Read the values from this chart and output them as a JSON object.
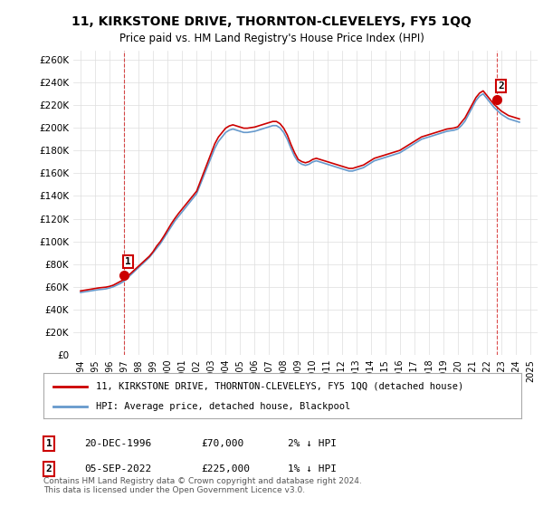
{
  "title": "11, KIRKSTONE DRIVE, THORNTON-CLEVELEYS, FY5 1QQ",
  "subtitle": "Price paid vs. HM Land Registry's House Price Index (HPI)",
  "ylabel_values": [
    "£0",
    "£20K",
    "£40K",
    "£60K",
    "£80K",
    "£100K",
    "£120K",
    "£140K",
    "£160K",
    "£180K",
    "£200K",
    "£220K",
    "£240K",
    "£260K"
  ],
  "yticks": [
    0,
    20000,
    40000,
    60000,
    80000,
    100000,
    120000,
    140000,
    160000,
    180000,
    200000,
    220000,
    240000,
    260000
  ],
  "xlim_start": 1993.5,
  "xlim_end": 2025.5,
  "ylim_min": 0,
  "ylim_max": 268000,
  "sale1_x": 1996.97,
  "sale1_y": 70000,
  "sale1_label": "1",
  "sale2_x": 2022.68,
  "sale2_y": 225000,
  "sale2_label": "2",
  "sale_color": "#cc0000",
  "hpi_color": "#6699cc",
  "property_line_color": "#cc0000",
  "grid_color": "#dddddd",
  "bg_color": "#ffffff",
  "legend_property": "11, KIRKSTONE DRIVE, THORNTON-CLEVELEYS, FY5 1QQ (detached house)",
  "legend_hpi": "HPI: Average price, detached house, Blackpool",
  "table_row1": [
    "1",
    "20-DEC-1996",
    "£70,000",
    "2% ↓ HPI"
  ],
  "table_row2": [
    "2",
    "05-SEP-2022",
    "£225,000",
    "1% ↓ HPI"
  ],
  "footnote": "Contains HM Land Registry data © Crown copyright and database right 2024.\nThis data is licensed under the Open Government Licence v3.0.",
  "xticks": [
    1994,
    1995,
    1996,
    1997,
    1998,
    1999,
    2000,
    2001,
    2002,
    2003,
    2004,
    2005,
    2006,
    2007,
    2008,
    2009,
    2010,
    2011,
    2012,
    2013,
    2014,
    2015,
    2016,
    2017,
    2018,
    2019,
    2020,
    2021,
    2022,
    2023,
    2024,
    2025
  ],
  "hpi_x": [
    1994.0,
    1994.25,
    1994.5,
    1994.75,
    1995.0,
    1995.25,
    1995.5,
    1995.75,
    1996.0,
    1996.25,
    1996.5,
    1996.75,
    1997.0,
    1997.25,
    1997.5,
    1997.75,
    1998.0,
    1998.25,
    1998.5,
    1998.75,
    1999.0,
    1999.25,
    1999.5,
    1999.75,
    2000.0,
    2000.25,
    2000.5,
    2000.75,
    2001.0,
    2001.25,
    2001.5,
    2001.75,
    2002.0,
    2002.25,
    2002.5,
    2002.75,
    2003.0,
    2003.25,
    2003.5,
    2003.75,
    2004.0,
    2004.25,
    2004.5,
    2004.75,
    2005.0,
    2005.25,
    2005.5,
    2005.75,
    2006.0,
    2006.25,
    2006.5,
    2006.75,
    2007.0,
    2007.25,
    2007.5,
    2007.75,
    2008.0,
    2008.25,
    2008.5,
    2008.75,
    2009.0,
    2009.25,
    2009.5,
    2009.75,
    2010.0,
    2010.25,
    2010.5,
    2010.75,
    2011.0,
    2011.25,
    2011.5,
    2011.75,
    2012.0,
    2012.25,
    2012.5,
    2012.75,
    2013.0,
    2013.25,
    2013.5,
    2013.75,
    2014.0,
    2014.25,
    2014.5,
    2014.75,
    2015.0,
    2015.25,
    2015.5,
    2015.75,
    2016.0,
    2016.25,
    2016.5,
    2016.75,
    2017.0,
    2017.25,
    2017.5,
    2017.75,
    2018.0,
    2018.25,
    2018.5,
    2018.75,
    2019.0,
    2019.25,
    2019.5,
    2019.75,
    2020.0,
    2020.25,
    2020.5,
    2020.75,
    2021.0,
    2021.25,
    2021.5,
    2021.75,
    2022.0,
    2022.25,
    2022.5,
    2022.75,
    2023.0,
    2023.25,
    2023.5,
    2023.75,
    2024.0,
    2024.25
  ],
  "hpi_y": [
    55000,
    55500,
    56000,
    56500,
    57000,
    57500,
    57800,
    58200,
    59000,
    60000,
    61500,
    63000,
    65000,
    68000,
    71000,
    74000,
    77000,
    80000,
    83000,
    86000,
    90000,
    94000,
    98000,
    103000,
    108000,
    113000,
    118000,
    122000,
    126000,
    130000,
    134000,
    138000,
    142000,
    150000,
    158000,
    166000,
    174000,
    182000,
    188000,
    192000,
    196000,
    198000,
    199000,
    198000,
    197000,
    196000,
    196000,
    196500,
    197000,
    198000,
    199000,
    200000,
    201000,
    202000,
    202000,
    200000,
    196000,
    190000,
    182000,
    175000,
    170000,
    168000,
    167000,
    168000,
    170000,
    171000,
    170000,
    169000,
    168000,
    167000,
    166000,
    165000,
    164000,
    163000,
    162000,
    162000,
    163000,
    164000,
    165000,
    167000,
    169000,
    171000,
    172000,
    173000,
    174000,
    175000,
    176000,
    177000,
    178000,
    180000,
    182000,
    184000,
    186000,
    188000,
    190000,
    191000,
    192000,
    193000,
    194000,
    195000,
    196000,
    197000,
    197500,
    198000,
    199000,
    202000,
    206000,
    212000,
    218000,
    224000,
    228000,
    230000,
    226000,
    222000,
    218000,
    215000,
    212000,
    210000,
    208000,
    207000,
    206000,
    205000
  ],
  "prop_x": [
    1994.0,
    1994.25,
    1994.5,
    1994.75,
    1995.0,
    1995.25,
    1995.5,
    1995.75,
    1996.0,
    1996.25,
    1996.5,
    1996.75,
    1997.0,
    1997.25,
    1997.5,
    1997.75,
    1998.0,
    1998.25,
    1998.5,
    1998.75,
    1999.0,
    1999.25,
    1999.5,
    1999.75,
    2000.0,
    2000.25,
    2000.5,
    2000.75,
    2001.0,
    2001.25,
    2001.5,
    2001.75,
    2002.0,
    2002.25,
    2002.5,
    2002.75,
    2003.0,
    2003.25,
    2003.5,
    2003.75,
    2004.0,
    2004.25,
    2004.5,
    2004.75,
    2005.0,
    2005.25,
    2005.5,
    2005.75,
    2006.0,
    2006.25,
    2006.5,
    2006.75,
    2007.0,
    2007.25,
    2007.5,
    2007.75,
    2008.0,
    2008.25,
    2008.5,
    2008.75,
    2009.0,
    2009.25,
    2009.5,
    2009.75,
    2010.0,
    2010.25,
    2010.5,
    2010.75,
    2011.0,
    2011.25,
    2011.5,
    2011.75,
    2012.0,
    2012.25,
    2012.5,
    2012.75,
    2013.0,
    2013.25,
    2013.5,
    2013.75,
    2014.0,
    2014.25,
    2014.5,
    2014.75,
    2015.0,
    2015.25,
    2015.5,
    2015.75,
    2016.0,
    2016.25,
    2016.5,
    2016.75,
    2017.0,
    2017.25,
    2017.5,
    2017.75,
    2018.0,
    2018.25,
    2018.5,
    2018.75,
    2019.0,
    2019.25,
    2019.5,
    2019.75,
    2020.0,
    2020.25,
    2020.5,
    2020.75,
    2021.0,
    2021.25,
    2021.5,
    2021.75,
    2022.0,
    2022.25,
    2022.5,
    2022.75,
    2023.0,
    2023.25,
    2023.5,
    2023.75,
    2024.0,
    2024.25
  ],
  "prop_y": [
    56364,
    56900,
    57436,
    57970,
    58506,
    59040,
    59375,
    59710,
    60390,
    61410,
    63090,
    64770,
    66450,
    69390,
    72330,
    75270,
    78210,
    81150,
    84090,
    87030,
    90970,
    95910,
    99850,
    104790,
    110130,
    115470,
    120210,
    124550,
    128490,
    132430,
    136370,
    140310,
    144250,
    152590,
    160930,
    169270,
    177610,
    185950,
    191890,
    195830,
    199770,
    201710,
    202700,
    201710,
    200720,
    199730,
    199730,
    200225,
    200720,
    201710,
    202700,
    203690,
    204680,
    205670,
    205670,
    203690,
    199730,
    193810,
    185480,
    178150,
    172230,
    170250,
    169260,
    170250,
    172230,
    173220,
    172230,
    171240,
    170250,
    169260,
    168270,
    167280,
    166290,
    165300,
    164310,
    164310,
    165300,
    166290,
    167280,
    169260,
    171240,
    173220,
    174210,
    175200,
    176190,
    177180,
    178170,
    179160,
    180150,
    182130,
    184110,
    186090,
    188070,
    190050,
    192030,
    193020,
    194010,
    195000,
    195990,
    196980,
    197970,
    198960,
    199455,
    199950,
    200940,
    204900,
    208860,
    214800,
    220740,
    226680,
    230640,
    232620,
    228660,
    224700,
    220740,
    217770,
    214800,
    212820,
    210840,
    209850,
    208860,
    207870
  ]
}
